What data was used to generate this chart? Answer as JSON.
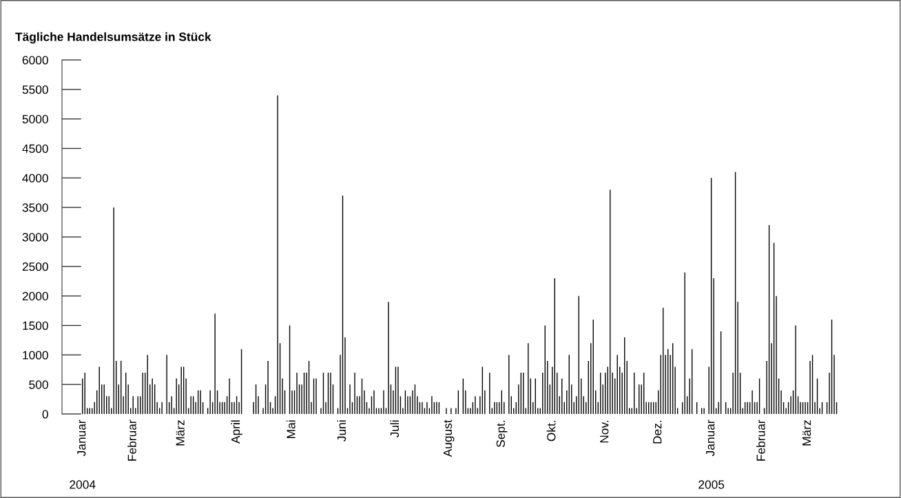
{
  "chart_data": {
    "type": "bar",
    "title": "Tägliche Handelsumsätze in Stück",
    "categories": [
      "Januar",
      null,
      null,
      null,
      null,
      null,
      null,
      null,
      null,
      null,
      null,
      null,
      null,
      null,
      null,
      null,
      null,
      null,
      null,
      null,
      null,
      "Februar",
      null,
      null,
      null,
      null,
      null,
      null,
      null,
      null,
      null,
      null,
      null,
      null,
      null,
      null,
      null,
      null,
      null,
      null,
      null,
      "März",
      null,
      null,
      null,
      null,
      null,
      null,
      null,
      null,
      null,
      null,
      null,
      null,
      null,
      null,
      null,
      null,
      null,
      null,
      null,
      null,
      null,
      null,
      "April",
      null,
      null,
      null,
      null,
      null,
      null,
      null,
      null,
      null,
      null,
      null,
      null,
      null,
      null,
      null,
      null,
      null,
      null,
      null,
      null,
      null,
      null,
      "Mai",
      null,
      null,
      null,
      null,
      null,
      null,
      null,
      null,
      null,
      null,
      null,
      null,
      null,
      null,
      null,
      null,
      null,
      null,
      null,
      null,
      "Juni",
      null,
      null,
      null,
      null,
      null,
      null,
      null,
      null,
      null,
      null,
      null,
      null,
      null,
      null,
      null,
      null,
      null,
      null,
      null,
      null,
      null,
      "Juli",
      null,
      null,
      null,
      null,
      null,
      null,
      null,
      null,
      null,
      null,
      null,
      null,
      null,
      null,
      null,
      null,
      null,
      null,
      null,
      null,
      null,
      "August",
      null,
      null,
      null,
      null,
      null,
      null,
      null,
      null,
      null,
      null,
      null,
      null,
      null,
      null,
      null,
      null,
      null,
      null,
      null,
      null,
      null,
      "Sept.",
      null,
      null,
      null,
      null,
      null,
      null,
      null,
      null,
      null,
      null,
      null,
      null,
      null,
      null,
      null,
      null,
      null,
      null,
      null,
      null,
      "Okt.",
      null,
      null,
      null,
      null,
      null,
      null,
      null,
      null,
      null,
      null,
      null,
      null,
      null,
      null,
      null,
      null,
      null,
      null,
      null,
      null,
      null,
      "Nov.",
      null,
      null,
      null,
      null,
      null,
      null,
      null,
      null,
      null,
      null,
      null,
      null,
      null,
      null,
      null,
      null,
      null,
      null,
      null,
      null,
      null,
      "Dez.",
      null,
      null,
      null,
      null,
      null,
      null,
      null,
      null,
      null,
      null,
      null,
      null,
      null,
      null,
      null,
      null,
      null,
      null,
      null,
      null,
      null,
      "Januar",
      null,
      null,
      null,
      null,
      null,
      null,
      null,
      null,
      null,
      null,
      null,
      null,
      null,
      null,
      null,
      null,
      null,
      null,
      null,
      null,
      "Februar",
      null,
      null,
      null,
      null,
      null,
      null,
      null,
      null,
      null,
      null,
      null,
      null,
      null,
      null,
      null,
      null,
      null,
      null,
      "März",
      null,
      null,
      null,
      null,
      null,
      null,
      null,
      null,
      null,
      null,
      null,
      null
    ],
    "values": [
      600,
      700,
      100,
      100,
      100,
      200,
      400,
      800,
      500,
      500,
      300,
      300,
      100,
      3500,
      900,
      500,
      900,
      300,
      700,
      500,
      100,
      300,
      100,
      300,
      300,
      700,
      700,
      1000,
      500,
      600,
      500,
      200,
      100,
      200,
      null,
      1000,
      200,
      300,
      100,
      600,
      500,
      800,
      800,
      600,
      100,
      300,
      300,
      200,
      400,
      400,
      200,
      null,
      100,
      400,
      200,
      1700,
      400,
      200,
      200,
      200,
      300,
      600,
      200,
      200,
      300,
      200,
      1100,
      null,
      null,
      null,
      null,
      200,
      500,
      300,
      null,
      100,
      500,
      900,
      200,
      100,
      300,
      5400,
      1200,
      600,
      400,
      null,
      1500,
      400,
      400,
      700,
      500,
      500,
      700,
      700,
      900,
      200,
      600,
      600,
      null,
      100,
      700,
      200,
      700,
      700,
      500,
      null,
      100,
      1000,
      3700,
      1300,
      100,
      500,
      200,
      700,
      300,
      300,
      600,
      400,
      200,
      100,
      300,
      400,
      100,
      100,
      100,
      400,
      100,
      1900,
      500,
      400,
      800,
      800,
      300,
      100,
      400,
      300,
      300,
      400,
      500,
      300,
      200,
      200,
      100,
      200,
      100,
      300,
      200,
      200,
      200,
      null,
      null,
      100,
      null,
      100,
      null,
      100,
      400,
      null,
      600,
      400,
      100,
      100,
      200,
      300,
      100,
      300,
      800,
      400,
      null,
      700,
      100,
      200,
      200,
      200,
      400,
      200,
      null,
      1000,
      300,
      100,
      200,
      500,
      700,
      700,
      100,
      1200,
      600,
      200,
      600,
      100,
      100,
      700,
      1500,
      900,
      500,
      800,
      2300,
      700,
      300,
      600,
      200,
      400,
      1000,
      500,
      200,
      300,
      2000,
      600,
      300,
      200,
      900,
      1200,
      1600,
      400,
      200,
      700,
      500,
      700,
      800,
      3800,
      700,
      600,
      1000,
      800,
      700,
      1300,
      900,
      100,
      100,
      700,
      100,
      500,
      500,
      700,
      200,
      200,
      200,
      200,
      200,
      400,
      1000,
      1800,
      1000,
      1100,
      1000,
      1200,
      800,
      100,
      null,
      200,
      2400,
      300,
      600,
      1100,
      null,
      200,
      null,
      100,
      100,
      null,
      800,
      4000,
      2300,
      100,
      200,
      1400,
      null,
      200,
      100,
      100,
      700,
      4100,
      1900,
      700,
      100,
      200,
      200,
      200,
      400,
      200,
      200,
      600,
      null,
      100,
      900,
      3200,
      1200,
      2900,
      2000,
      600,
      400,
      200,
      100,
      200,
      300,
      400,
      1500,
      300,
      200,
      200,
      200,
      200,
      900,
      1000,
      200,
      600,
      100,
      200,
      null,
      200,
      700,
      1600,
      1000,
      200
    ],
    "color": "#000000",
    "ylim": [
      0,
      6000
    ],
    "yticks": [
      0,
      500,
      1000,
      1500,
      2000,
      2500,
      3000,
      3500,
      4000,
      4500,
      5000,
      5500,
      6000
    ],
    "annotations": [
      "2004",
      "2005"
    ]
  }
}
